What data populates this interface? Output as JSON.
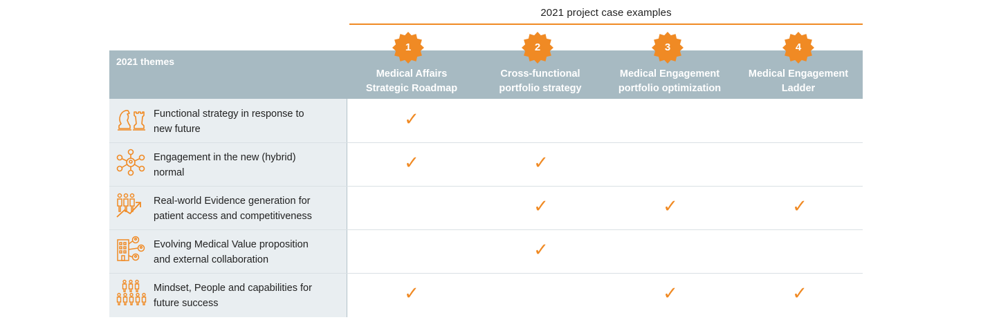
{
  "header": {
    "top_title": "2021 project case examples",
    "themes_label": "2021 themes"
  },
  "columns": [
    {
      "number": "1",
      "line1": "Medical Affairs",
      "line2": "Strategic Roadmap"
    },
    {
      "number": "2",
      "line1": "Cross-functional",
      "line2": "portfolio strategy"
    },
    {
      "number": "3",
      "line1": "Medical Engagement",
      "line2": "portfolio optimization"
    },
    {
      "number": "4",
      "line1": "Medical Engagement",
      "line2": "Ladder"
    }
  ],
  "themes": [
    {
      "line1": "Functional strategy in response to",
      "line2": "new future",
      "icon": "chess-pieces-icon",
      "checks": [
        true,
        false,
        false,
        false
      ]
    },
    {
      "line1": "Engagement in the new (hybrid)",
      "line2": "normal",
      "icon": "network-hub-icon",
      "checks": [
        true,
        true,
        false,
        false
      ]
    },
    {
      "line1": "Real-world Evidence generation for",
      "line2": "patient access and competitiveness",
      "icon": "people-growth-icon",
      "checks": [
        false,
        true,
        true,
        true
      ]
    },
    {
      "line1": "Evolving Medical Value proposition",
      "line2": "and external collaboration",
      "icon": "building-collaboration-icon",
      "checks": [
        false,
        true,
        false,
        false
      ]
    },
    {
      "line1": "Mindset, People and capabilities for",
      "line2": "future success",
      "icon": "people-group-icon",
      "checks": [
        true,
        false,
        true,
        true
      ]
    }
  ],
  "check_glyph": "✓",
  "colors": {
    "accent": "#f08a24",
    "header_band": "#a7bac2",
    "left_column": "#e9eef1"
  }
}
